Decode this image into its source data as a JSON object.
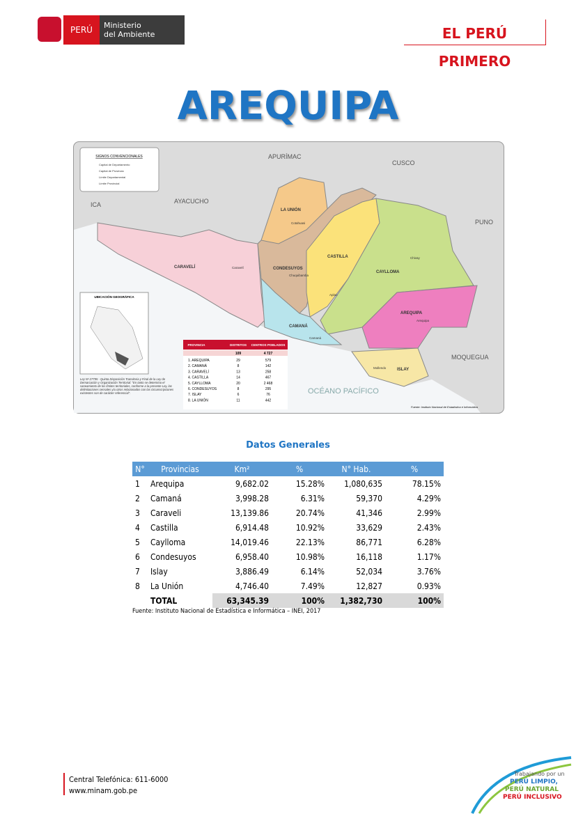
{
  "header": {
    "country": "PERÚ",
    "ministry": [
      "Ministerio",
      "del Ambiente"
    ],
    "slogan": "EL PERÚ PRIMERO"
  },
  "title": "AREQUIPA",
  "map": {
    "neighbors": [
      "APURÍMAC",
      "CUSCO",
      "ICA",
      "AYACUCHO",
      "PUNO",
      "MOQUEGUA",
      "OCÉANO PACÍFICO"
    ],
    "provinces": [
      "LA UNIÓN",
      "CASTILLA",
      "CONDESUYOS",
      "CAYLLOMA",
      "CARAVELÍ",
      "AREQUIPA",
      "CAMANÁ",
      "ISLAY"
    ],
    "capitals": [
      "Cotahuasi",
      "Chivay",
      "Caravelí",
      "Chuquibamba",
      "Aplao",
      "Arequipa",
      "Camaná",
      "Mollendo"
    ],
    "legend": {
      "title": "SIGNOS CONVENCIONALES",
      "items": [
        "Capital de Departamento",
        "Capital de Provincia",
        "Límite Departamental",
        "Límite Provincial"
      ]
    },
    "inset_title": "UBICACIÓN GEOGRÁFICA",
    "note": "Ley Nº 27795 - Quinta Disposición Transitoria y Final de la Ley de Demarcación y Organización Territorial: \"En tanto se determina el saneamiento de los límites territoriales, conforme a la presente Ley, las delimitaciones censales y/u otros relacionados con las circunscripciones existentes son de carácter referencial\".",
    "source": "Fuente: Instituto Nacional de Estadística e Informática",
    "mini_table": {
      "headers": [
        "PROVINCIA",
        "DISTRITOS",
        "CENTROS POBLADOS"
      ],
      "total": [
        "109",
        "4 727"
      ],
      "rows": [
        [
          "1. AREQUIPA",
          "29",
          "579"
        ],
        [
          "2. CAMANÁ",
          "8",
          "142"
        ],
        [
          "3. CARAVELÍ",
          "13",
          "258"
        ],
        [
          "4. CASTILLA",
          "14",
          "467"
        ],
        [
          "5. CAYLLOMA",
          "20",
          "2 468"
        ],
        [
          "6. CONDESUYOS",
          "8",
          "295"
        ],
        [
          "7. ISLAY",
          "6",
          "76"
        ],
        [
          "8. LA UNIÓN",
          "11",
          "442"
        ]
      ]
    }
  },
  "table": {
    "caption": "Datos Generales",
    "headers": [
      "N°",
      "Provincias",
      "Km²",
      "%",
      "N° Hab.",
      "%"
    ],
    "rows": [
      [
        "1",
        "Arequipa",
        "9,682.02",
        "15.28%",
        "1,080,635",
        "78.15%"
      ],
      [
        "2",
        "Camaná",
        "3,998.28",
        "6.31%",
        "59,370",
        "4.29%"
      ],
      [
        "3",
        "Caraveli",
        "13,139.86",
        "20.74%",
        "41,346",
        "2.99%"
      ],
      [
        "4",
        "Castilla",
        "6,914.48",
        "10.92%",
        "33,629",
        "2.43%"
      ],
      [
        "5",
        "Caylloma",
        "14,019.46",
        "22.13%",
        "86,771",
        "6.28%"
      ],
      [
        "6",
        "Condesuyos",
        "6,958.40",
        "10.98%",
        "16,118",
        "1.17%"
      ],
      [
        "7",
        "Islay",
        "3,886.49",
        "6.14%",
        "52,034",
        "3.76%"
      ],
      [
        "8",
        "La Unión",
        "4,746.40",
        "7.49%",
        "12,827",
        "0.93%"
      ]
    ],
    "total": [
      "TOTAL",
      "63,345.39",
      "100%",
      "1,382,730",
      "100%"
    ],
    "source": "Fuente: Instituto Nacional de Estadística e Informática – INEI, 2017"
  },
  "footer": {
    "phone": "Central Telefónica: 611-6000",
    "web": "www.minam.gob.pe",
    "logo": [
      "Trabajando por un",
      "PERÚ LIMPIO,",
      "PERÚ NATURAL",
      "PERÚ INCLUSIVO"
    ]
  }
}
